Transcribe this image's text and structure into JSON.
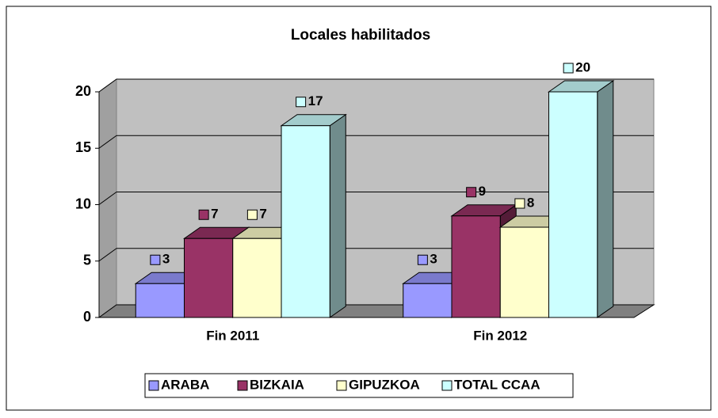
{
  "chart_data": {
    "type": "bar",
    "title": "Locales habilitados",
    "categories": [
      "Fin 2011",
      "Fin 2012"
    ],
    "series": [
      {
        "name": "ARABA",
        "color": "#9999ff",
        "values": [
          3,
          3
        ]
      },
      {
        "name": "BIZKAIA",
        "color": "#993366",
        "values": [
          7,
          9
        ]
      },
      {
        "name": "GIPUZKOA",
        "color": "#ffffcc",
        "values": [
          7,
          8
        ]
      },
      {
        "name": "TOTAL CCAA",
        "color": "#ccffff",
        "values": [
          17,
          20
        ]
      }
    ],
    "ylim": [
      0,
      20
    ],
    "yticks": [
      0,
      5,
      10,
      15,
      20
    ],
    "grid": true,
    "legend": "bottom"
  }
}
